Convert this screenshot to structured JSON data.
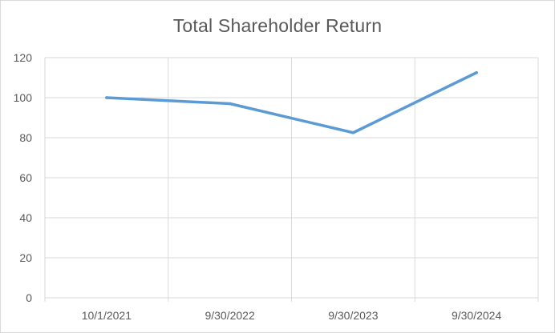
{
  "chart_data": {
    "type": "line",
    "title": "Total Shareholder Return",
    "xlabel": "",
    "ylabel": "",
    "categories": [
      "10/1/2021",
      "9/30/2022",
      "9/30/2023",
      "9/30/2024"
    ],
    "series": [
      {
        "values": [
          100,
          97,
          82.5,
          112.5
        ]
      }
    ],
    "ylim": [
      0,
      120
    ],
    "yticks": [
      0,
      20,
      40,
      60,
      80,
      100,
      120
    ],
    "grid": true,
    "legend": "none",
    "colors": {
      "line": "#5b9bd5",
      "grid": "#d9d9d9",
      "text": "#595959"
    }
  }
}
